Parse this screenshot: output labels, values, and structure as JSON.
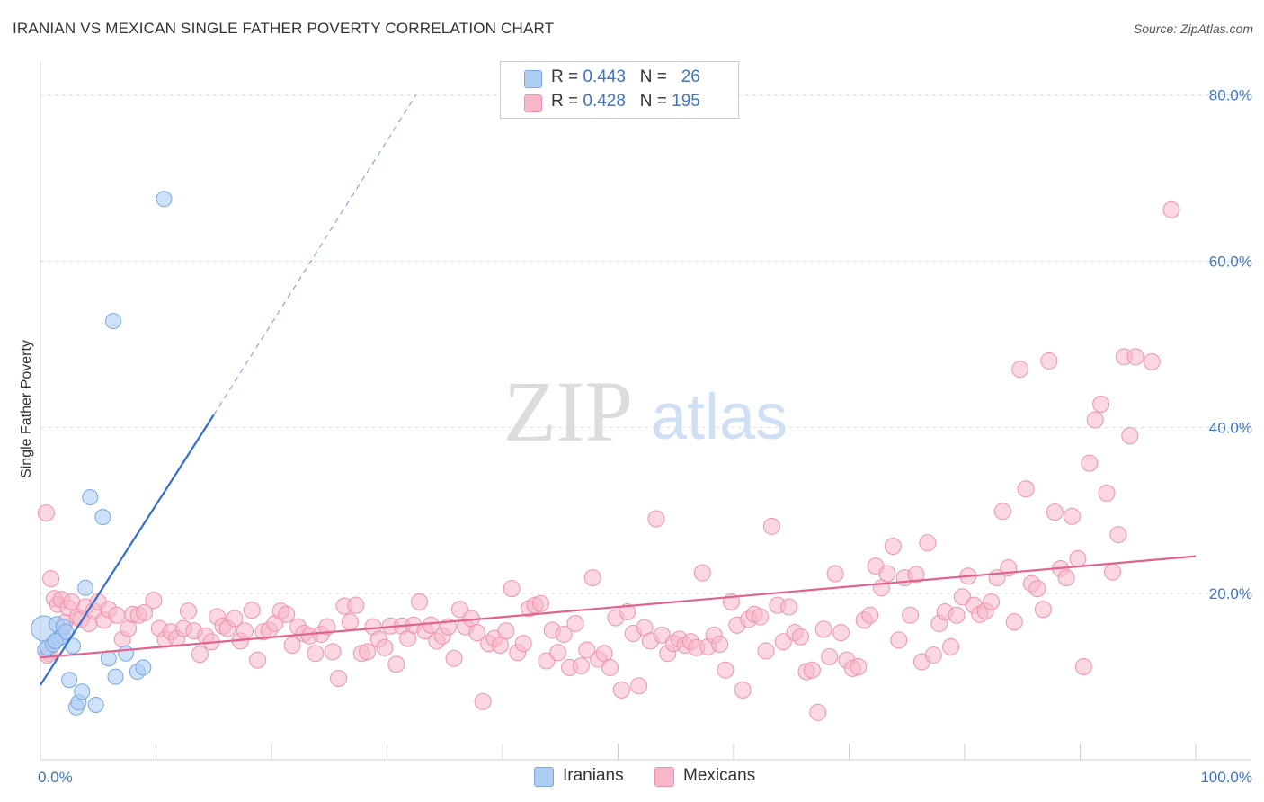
{
  "title": "IRANIAN VS MEXICAN SINGLE FATHER POVERTY CORRELATION CHART",
  "source": "Source: ZipAtlas.com",
  "watermark": {
    "zip": "ZIP",
    "atlas": "atlas"
  },
  "legend": {
    "iranians": {
      "r_label": "R = ",
      "r_value": "0.443",
      "n_label": "N = ",
      "n_value": "26"
    },
    "mexicans": {
      "r_label": "R = ",
      "r_value": "0.428",
      "n_label": "N = ",
      "n_value": "195"
    }
  },
  "bottom_legend": {
    "iranians": "Iranians",
    "mexicans": "Mexicans"
  },
  "colors": {
    "iranians_fill": "#aecdf5",
    "iranians_stroke": "#7aa7e0",
    "iranians_line": "#2f6fd0",
    "mexicans_fill": "#f7b7c9",
    "mexicans_stroke": "#ee92ad",
    "mexicans_line": "#e2628e",
    "grid": "#dddddd",
    "tick_label": "#3d74c4"
  },
  "chart_data": {
    "type": "scatter",
    "title": "IRANIAN VS MEXICAN SINGLE FATHER POVERTY CORRELATION CHART",
    "xlabel": "",
    "ylabel": "Single Father Poverty",
    "xlim": [
      0,
      100
    ],
    "ylim": [
      0,
      83
    ],
    "x_tick_labels": [
      "0.0%",
      "100.0%"
    ],
    "y_ticks": [
      20,
      40,
      60,
      80
    ],
    "y_tick_labels": [
      "20.0%",
      "40.0%",
      "60.0%",
      "80.0%"
    ],
    "series": [
      {
        "name": "Iranians",
        "r": 0.443,
        "n": 26,
        "trend": {
          "x0": 0,
          "y0": 9.0,
          "x1": 15,
          "y1": 41.5,
          "dash_to_x": 32.5,
          "dash_to_y": 80.0
        },
        "points": [
          [
            0.3,
            15.8
          ],
          [
            0.4,
            13.2
          ],
          [
            0.6,
            13.5
          ],
          [
            1.1,
            13.9
          ],
          [
            1.4,
            16.3
          ],
          [
            1.6,
            14.6
          ],
          [
            1.9,
            14.8
          ],
          [
            2.0,
            16.0
          ],
          [
            2.2,
            15.4
          ],
          [
            2.5,
            9.6
          ],
          [
            2.8,
            13.7
          ],
          [
            3.1,
            6.3
          ],
          [
            3.3,
            6.9
          ],
          [
            3.6,
            8.2
          ],
          [
            3.9,
            20.7
          ],
          [
            4.3,
            31.6
          ],
          [
            4.8,
            6.6
          ],
          [
            5.4,
            29.2
          ],
          [
            5.9,
            12.2
          ],
          [
            6.3,
            52.8
          ],
          [
            6.5,
            10.0
          ],
          [
            7.4,
            12.8
          ],
          [
            8.4,
            10.6
          ],
          [
            8.9,
            11.1
          ],
          [
            10.7,
            67.5
          ],
          [
            1.3,
            14.3
          ]
        ]
      },
      {
        "name": "Mexicans",
        "r": 0.428,
        "n": 195,
        "trend": {
          "x0": 0,
          "y0": 12.3,
          "x1": 100,
          "y1": 24.5
        },
        "points": [
          [
            0.5,
            29.7
          ],
          [
            0.9,
            21.8
          ],
          [
            0.8,
            12.8
          ],
          [
            1.2,
            19.4
          ],
          [
            1.5,
            18.7
          ],
          [
            1.8,
            19.3
          ],
          [
            2.1,
            16.5
          ],
          [
            2.4,
            18.3
          ],
          [
            2.7,
            19.0
          ],
          [
            3.2,
            17.2
          ],
          [
            3.5,
            16.9
          ],
          [
            3.9,
            18.4
          ],
          [
            4.2,
            16.4
          ],
          [
            4.6,
            17.9
          ],
          [
            5.0,
            19.0
          ],
          [
            5.5,
            16.8
          ],
          [
            5.9,
            18.1
          ],
          [
            6.6,
            17.4
          ],
          [
            7.1,
            14.5
          ],
          [
            7.6,
            15.8
          ],
          [
            8.0,
            17.5
          ],
          [
            8.5,
            17.4
          ],
          [
            9.0,
            17.7
          ],
          [
            9.8,
            19.2
          ],
          [
            10.3,
            15.8
          ],
          [
            10.8,
            14.5
          ],
          [
            11.3,
            15.4
          ],
          [
            11.8,
            14.6
          ],
          [
            12.4,
            15.8
          ],
          [
            12.8,
            17.9
          ],
          [
            13.3,
            15.5
          ],
          [
            13.8,
            12.7
          ],
          [
            14.3,
            14.9
          ],
          [
            14.8,
            14.2
          ],
          [
            15.3,
            17.2
          ],
          [
            15.8,
            16.1
          ],
          [
            16.2,
            15.8
          ],
          [
            16.8,
            17.0
          ],
          [
            17.3,
            14.3
          ],
          [
            17.7,
            15.5
          ],
          [
            18.3,
            18.0
          ],
          [
            18.8,
            12.0
          ],
          [
            19.3,
            15.4
          ],
          [
            19.8,
            15.6
          ],
          [
            20.3,
            16.4
          ],
          [
            20.8,
            17.9
          ],
          [
            21.3,
            17.5
          ],
          [
            21.8,
            13.8
          ],
          [
            22.3,
            16.0
          ],
          [
            22.8,
            15.2
          ],
          [
            23.3,
            14.9
          ],
          [
            23.8,
            12.8
          ],
          [
            24.3,
            15.1
          ],
          [
            24.8,
            16.0
          ],
          [
            25.3,
            13.0
          ],
          [
            25.8,
            9.8
          ],
          [
            26.3,
            18.5
          ],
          [
            26.8,
            16.6
          ],
          [
            27.3,
            18.6
          ],
          [
            27.8,
            12.8
          ],
          [
            28.3,
            13.0
          ],
          [
            28.8,
            16.0
          ],
          [
            29.3,
            14.5
          ],
          [
            29.8,
            13.5
          ],
          [
            30.3,
            16.1
          ],
          [
            30.8,
            11.5
          ],
          [
            31.3,
            16.1
          ],
          [
            31.8,
            14.6
          ],
          [
            32.3,
            16.2
          ],
          [
            32.8,
            19.0
          ],
          [
            33.3,
            15.5
          ],
          [
            33.8,
            16.2
          ],
          [
            34.3,
            14.3
          ],
          [
            34.8,
            14.9
          ],
          [
            35.3,
            16.0
          ],
          [
            35.8,
            12.2
          ],
          [
            36.3,
            18.1
          ],
          [
            36.8,
            16.0
          ],
          [
            37.3,
            17.0
          ],
          [
            37.8,
            15.3
          ],
          [
            38.3,
            7.0
          ],
          [
            38.8,
            14.0
          ],
          [
            39.3,
            14.6
          ],
          [
            39.8,
            13.8
          ],
          [
            40.3,
            15.5
          ],
          [
            40.8,
            20.6
          ],
          [
            41.3,
            12.9
          ],
          [
            41.8,
            14.0
          ],
          [
            42.3,
            18.2
          ],
          [
            42.8,
            18.6
          ],
          [
            43.3,
            18.8
          ],
          [
            43.8,
            11.9
          ],
          [
            44.3,
            15.6
          ],
          [
            44.8,
            12.9
          ],
          [
            45.3,
            15.1
          ],
          [
            45.8,
            11.1
          ],
          [
            46.3,
            16.4
          ],
          [
            46.8,
            11.3
          ],
          [
            47.3,
            13.2
          ],
          [
            47.8,
            21.9
          ],
          [
            48.3,
            12.1
          ],
          [
            48.8,
            12.8
          ],
          [
            49.3,
            11.1
          ],
          [
            49.8,
            17.1
          ],
          [
            50.3,
            8.4
          ],
          [
            50.8,
            17.8
          ],
          [
            51.3,
            15.2
          ],
          [
            51.8,
            8.9
          ],
          [
            52.3,
            15.9
          ],
          [
            52.8,
            14.3
          ],
          [
            53.3,
            29.0
          ],
          [
            53.8,
            15.0
          ],
          [
            54.3,
            12.8
          ],
          [
            54.8,
            14.0
          ],
          [
            55.3,
            14.5
          ],
          [
            55.8,
            13.8
          ],
          [
            56.3,
            14.2
          ],
          [
            56.8,
            13.5
          ],
          [
            57.3,
            22.5
          ],
          [
            57.8,
            13.6
          ],
          [
            58.3,
            15.0
          ],
          [
            58.8,
            13.9
          ],
          [
            59.3,
            10.8
          ],
          [
            59.8,
            19.0
          ],
          [
            60.3,
            16.2
          ],
          [
            60.8,
            8.4
          ],
          [
            61.3,
            16.9
          ],
          [
            61.8,
            17.5
          ],
          [
            62.3,
            17.2
          ],
          [
            62.8,
            13.1
          ],
          [
            63.3,
            28.1
          ],
          [
            63.8,
            18.6
          ],
          [
            64.3,
            14.2
          ],
          [
            64.8,
            18.4
          ],
          [
            65.3,
            15.3
          ],
          [
            65.8,
            14.8
          ],
          [
            66.3,
            10.6
          ],
          [
            66.8,
            10.8
          ],
          [
            67.3,
            5.7
          ],
          [
            67.8,
            15.7
          ],
          [
            68.3,
            12.4
          ],
          [
            68.8,
            22.4
          ],
          [
            69.3,
            15.3
          ],
          [
            69.8,
            12.0
          ],
          [
            70.3,
            11.0
          ],
          [
            70.8,
            11.2
          ],
          [
            71.3,
            16.8
          ],
          [
            71.8,
            17.4
          ],
          [
            72.3,
            23.3
          ],
          [
            72.8,
            20.7
          ],
          [
            73.3,
            22.4
          ],
          [
            73.8,
            25.7
          ],
          [
            74.3,
            14.4
          ],
          [
            74.8,
            21.9
          ],
          [
            75.3,
            17.4
          ],
          [
            75.8,
            22.3
          ],
          [
            76.3,
            11.8
          ],
          [
            76.8,
            26.1
          ],
          [
            77.3,
            12.6
          ],
          [
            77.8,
            16.4
          ],
          [
            78.3,
            17.8
          ],
          [
            78.8,
            13.6
          ],
          [
            79.3,
            17.4
          ],
          [
            79.8,
            19.6
          ],
          [
            80.3,
            22.1
          ],
          [
            80.8,
            18.6
          ],
          [
            81.3,
            17.5
          ],
          [
            81.8,
            17.9
          ],
          [
            82.3,
            19.0
          ],
          [
            82.8,
            21.9
          ],
          [
            83.3,
            29.9
          ],
          [
            83.8,
            23.1
          ],
          [
            84.3,
            16.6
          ],
          [
            84.8,
            47.0
          ],
          [
            85.3,
            32.6
          ],
          [
            85.8,
            21.2
          ],
          [
            86.3,
            20.6
          ],
          [
            86.8,
            18.1
          ],
          [
            87.3,
            48.0
          ],
          [
            87.8,
            29.8
          ],
          [
            88.3,
            23.0
          ],
          [
            88.8,
            21.9
          ],
          [
            89.3,
            29.3
          ],
          [
            89.8,
            24.2
          ],
          [
            90.3,
            11.2
          ],
          [
            90.8,
            35.7
          ],
          [
            91.3,
            40.9
          ],
          [
            91.8,
            42.8
          ],
          [
            92.3,
            32.1
          ],
          [
            92.8,
            22.6
          ],
          [
            93.3,
            27.1
          ],
          [
            93.8,
            48.5
          ],
          [
            94.3,
            39.0
          ],
          [
            94.8,
            48.5
          ],
          [
            96.2,
            47.9
          ],
          [
            97.9,
            66.2
          ],
          [
            0.6,
            12.6
          ]
        ]
      }
    ]
  }
}
